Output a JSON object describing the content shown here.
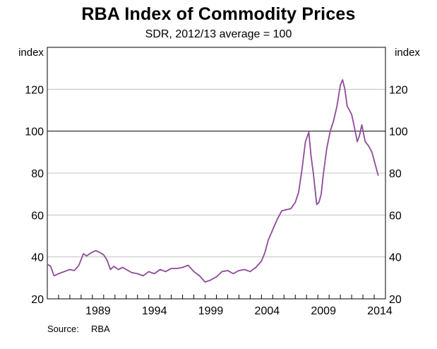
{
  "chart_data": {
    "type": "line",
    "title": "RBA Index of Commodity Prices",
    "subtitle": "SDR, 2012/13 average = 100",
    "ylabel_left": "index",
    "ylabel_right": "index",
    "ylim": [
      20,
      140
    ],
    "yticks": [
      20,
      40,
      60,
      80,
      100,
      120
    ],
    "xlim": [
      1985.0,
      2015.0
    ],
    "xticks": [
      1989,
      1994,
      1999,
      2004,
      2009,
      2014
    ],
    "reference_line": 100,
    "line_color": "#8e4a9a",
    "series": [
      {
        "name": "RBA Index of Commodity Prices",
        "x": [
          1985.0,
          1985.3,
          1985.6,
          1986.0,
          1986.5,
          1987.0,
          1987.4,
          1987.8,
          1988.2,
          1988.5,
          1988.9,
          1989.3,
          1989.7,
          1990.0,
          1990.3,
          1990.6,
          1990.9,
          1991.3,
          1991.7,
          1992.0,
          1992.5,
          1993.0,
          1993.5,
          1994.0,
          1994.5,
          1995.0,
          1995.5,
          1996.0,
          1996.5,
          1997.0,
          1997.5,
          1998.0,
          1998.5,
          1999.0,
          1999.5,
          2000.0,
          2000.5,
          2001.0,
          2001.5,
          2002.0,
          2002.5,
          2003.0,
          2003.5,
          2004.0,
          2004.3,
          2004.6,
          2005.0,
          2005.4,
          2005.8,
          2006.2,
          2006.6,
          2007.0,
          2007.3,
          2007.6,
          2007.9,
          2008.2,
          2008.4,
          2008.6,
          2008.9,
          2009.1,
          2009.3,
          2009.5,
          2009.8,
          2010.1,
          2010.4,
          2010.7,
          2011.0,
          2011.2,
          2011.4,
          2011.6,
          2011.8,
          2012.0,
          2012.2,
          2012.5,
          2012.7,
          2012.9,
          2013.2,
          2013.5,
          2013.8,
          2014.1,
          2014.35
        ],
        "values": [
          36.5,
          35.5,
          31.0,
          32.0,
          33.0,
          34.0,
          33.5,
          36.0,
          41.5,
          40.5,
          42.0,
          43.0,
          42.0,
          41.0,
          38.5,
          34.0,
          35.5,
          34.0,
          35.0,
          34.0,
          32.5,
          32.0,
          31.0,
          33.0,
          32.0,
          34.0,
          33.0,
          34.5,
          34.5,
          35.0,
          36.0,
          33.0,
          31.0,
          28.0,
          29.0,
          30.5,
          33.0,
          33.5,
          32.0,
          33.5,
          34.0,
          33.0,
          35.0,
          38.0,
          42.0,
          48.0,
          53.0,
          58.0,
          62.0,
          62.5,
          63.0,
          66.0,
          71.0,
          82.0,
          95.0,
          99.5,
          88.0,
          80.0,
          65.0,
          66.0,
          70.0,
          80.0,
          92.0,
          100.0,
          105.0,
          112.0,
          122.0,
          124.5,
          120.0,
          112.0,
          110.0,
          108.0,
          103.0,
          95.0,
          98.0,
          103.0,
          95.0,
          93.0,
          90.0,
          84.0,
          79.0
        ]
      }
    ]
  },
  "source": {
    "label": "Source:",
    "value": "RBA"
  }
}
